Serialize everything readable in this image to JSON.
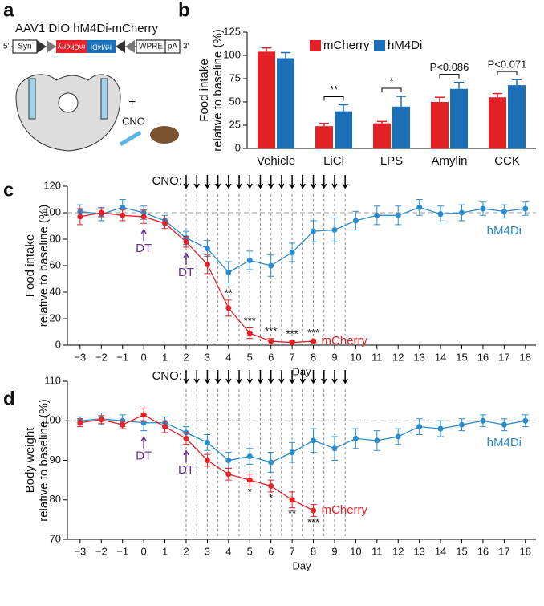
{
  "panel_labels": [
    "a",
    "b",
    "c",
    "d"
  ],
  "diagram": {
    "construct": "AAV1 DIO hM4Di-mCherry",
    "five_prime": "5'",
    "promoter": "Syn",
    "gene1": "mCherry",
    "gene2": "hM4Di",
    "wpre": "WPRE",
    "pa": "pA",
    "three_prime": "3'",
    "plus": "+",
    "drug": "CNO"
  },
  "chart_data": [
    {
      "type": "bar",
      "y_label": [
        "Food intake",
        "relative to baseline (%)"
      ],
      "categories": [
        "Vehicle",
        "LiCl",
        "LPS",
        "Amylin",
        "CCK"
      ],
      "series": [
        {
          "name": "mCherry",
          "color": "#e32127",
          "values": [
            104,
            24,
            27,
            50,
            55
          ],
          "errors": [
            4,
            3,
            2,
            5,
            4
          ]
        },
        {
          "name": "hM4Di",
          "color": "#1a6fb8",
          "values": [
            97,
            40,
            45,
            64,
            68
          ],
          "errors": [
            6,
            7,
            11,
            7,
            6
          ]
        }
      ],
      "ylim": [
        0,
        125
      ],
      "yticks": [
        0,
        25,
        50,
        75,
        100,
        125
      ],
      "annotations": [
        {
          "x": "LiCl",
          "text": "**"
        },
        {
          "x": "LPS",
          "text": "*"
        },
        {
          "x": "Amylin",
          "text": "P<0.086"
        },
        {
          "x": "CCK",
          "text": "P<0.071"
        }
      ]
    },
    {
      "type": "line",
      "y_label": [
        "Food intake",
        "relative to baseline (%)"
      ],
      "x_label": "Day",
      "x": [
        -3,
        -2,
        -1,
        0,
        1,
        2,
        3,
        4,
        5,
        6,
        7,
        8,
        9,
        10,
        11,
        12,
        13,
        14,
        15,
        16,
        17,
        18
      ],
      "series": [
        {
          "name": "hM4Di",
          "color": "#2a8ccc",
          "values": [
            101,
            99,
            104,
            100,
            94,
            81,
            73,
            55,
            64,
            60,
            70,
            86,
            87,
            94,
            98,
            98,
            104,
            99,
            100,
            103,
            101,
            103
          ],
          "errors": [
            5,
            5,
            6,
            5,
            4,
            5,
            6,
            8,
            7,
            8,
            7,
            8,
            9,
            7,
            7,
            7,
            6,
            6,
            6,
            5,
            5,
            5
          ]
        },
        {
          "name": "mCherry",
          "color": "#e32127",
          "values": [
            97,
            100,
            98,
            97,
            92,
            78,
            61,
            28,
            9,
            3,
            2,
            3,
            null,
            null,
            null,
            null,
            null,
            null,
            null,
            null,
            null,
            null
          ],
          "errors": [
            6,
            3,
            4,
            5,
            4,
            4,
            7,
            6,
            4,
            2,
            1,
            1,
            null,
            null,
            null,
            null,
            null,
            null,
            null,
            null,
            null,
            null
          ]
        }
      ],
      "xlim": [
        -3.6,
        18.5
      ],
      "xticks": [
        {
          "value": -3,
          "label": "−3"
        },
        {
          "value": -2,
          "label": "−2"
        },
        {
          "value": -1,
          "label": "−1"
        },
        0,
        1,
        2,
        3,
        4,
        5,
        6,
        7,
        8,
        9,
        10,
        11,
        12,
        13,
        14,
        15,
        16,
        17,
        18
      ],
      "ylim": [
        0,
        120
      ],
      "yticks": [
        0,
        20,
        40,
        60,
        80,
        100,
        120
      ],
      "reference_line": 100,
      "cno_label": "CNO:",
      "cno_x": [
        2,
        2.5,
        3,
        3.5,
        4,
        4.5,
        5,
        5.5,
        6,
        6.5,
        7,
        7.5,
        8,
        8.5,
        9,
        9.5
      ],
      "dt_label": "DT",
      "dt_x": [
        0,
        2
      ],
      "annotations": [
        {
          "x": 4,
          "text": "**"
        },
        {
          "x": 5,
          "text": "***"
        },
        {
          "x": 6,
          "text": "***"
        },
        {
          "x": 7,
          "text": "***"
        },
        {
          "x": 8,
          "text": "***"
        }
      ],
      "annotation_side": "above"
    },
    {
      "type": "line",
      "y_label": [
        "Body weight",
        "relative to baseline (%)"
      ],
      "x_label": "Day",
      "x": [
        -3,
        -2,
        -1,
        0,
        1,
        2,
        3,
        4,
        5,
        6,
        7,
        8,
        9,
        10,
        11,
        12,
        13,
        14,
        15,
        16,
        17,
        18
      ],
      "series": [
        {
          "name": "hM4Di",
          "color": "#2a8ccc",
          "values": [
            100,
            100.5,
            100,
            99.5,
            99.5,
            97,
            94.5,
            90,
            91,
            89.5,
            92,
            95,
            93,
            95.5,
            95,
            96,
            98.5,
            98,
            99,
            100,
            99,
            100
          ],
          "errors": [
            1,
            1.5,
            1.5,
            2,
            1.5,
            1.5,
            2,
            2,
            2,
            2.5,
            2.5,
            3,
            3,
            2.5,
            2.5,
            2,
            2,
            2,
            1.5,
            1.5,
            1.5,
            1.5
          ]
        },
        {
          "name": "mCherry",
          "color": "#e32127",
          "values": [
            99.5,
            100.3,
            99,
            101.5,
            98.5,
            95.5,
            90,
            86.5,
            85,
            83.5,
            80,
            77.3,
            null,
            null,
            null,
            null,
            null,
            null,
            null,
            null,
            null,
            null
          ],
          "errors": [
            1,
            1,
            1,
            1.5,
            1.5,
            1.5,
            1.5,
            1.5,
            1.5,
            1.5,
            2,
            1.5,
            null,
            null,
            null,
            null,
            null,
            null,
            null,
            null,
            null,
            null
          ]
        }
      ],
      "xlim": [
        -3.6,
        18.5
      ],
      "xticks": [
        {
          "value": -3,
          "label": "−3"
        },
        {
          "value": -2,
          "label": "−2"
        },
        {
          "value": -1,
          "label": "−1"
        },
        0,
        1,
        2,
        3,
        4,
        5,
        6,
        7,
        8,
        9,
        10,
        11,
        12,
        13,
        14,
        15,
        16,
        17,
        18
      ],
      "ylim": [
        70,
        110
      ],
      "yticks": [
        70,
        80,
        90,
        100,
        110
      ],
      "reference_line": 100,
      "cno_label": "CNO:",
      "cno_x": [
        2,
        2.5,
        3,
        3.5,
        4,
        4.5,
        5,
        5.5,
        6,
        6.5,
        7,
        7.5,
        8,
        8.5,
        9,
        9.5
      ],
      "dt_label": "DT",
      "dt_x": [
        0,
        2
      ],
      "annotations": [
        {
          "x": 5,
          "text": "*"
        },
        {
          "x": 6,
          "text": "*"
        },
        {
          "x": 7,
          "text": "**"
        },
        {
          "x": 8,
          "text": "***"
        }
      ],
      "annotation_side": "below"
    }
  ]
}
